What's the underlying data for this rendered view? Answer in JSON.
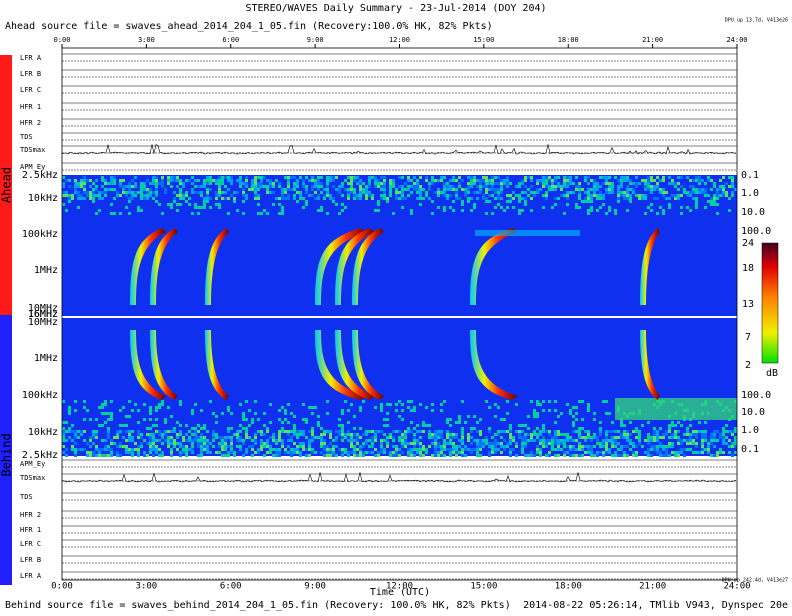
{
  "header": {
    "title": "STEREO/WAVES Daily Summary - 23-Jul-2014 (DOY 204)",
    "ahead_source": "Ahead source file = swaves_ahead_2014_204_1_05.fin (Recovery:100.0% HK, 82% Pkts)",
    "ahead_status": "DPU up 13.7d, V413e26"
  },
  "time_axis": {
    "ticks": [
      "0:00",
      "3:00",
      "6:00",
      "9:00",
      "12:00",
      "15:00",
      "18:00",
      "21:00",
      "24:00"
    ],
    "label": "Time (UTC)"
  },
  "side": {
    "ahead": "Ahead",
    "behind": "Behind"
  },
  "ahead_panels": [
    "LFR A",
    "LFR B",
    "LFR C",
    "HFR 1",
    "HFR 2",
    "TDS",
    "TDSmax",
    "APM_Ey"
  ],
  "behind_panels": [
    "APM_Ey",
    "TDSmax",
    "TDS",
    "HFR 2",
    "HFR 1",
    "LFR C",
    "LFR B",
    "LFR A"
  ],
  "ahead_freqs": [
    "2.5kHz",
    "10kHz",
    "100kHz",
    "1MHz",
    "10MHz",
    "16MHz"
  ],
  "behind_freqs": [
    "16MHz",
    "10MHz",
    "1MHz",
    "100kHz",
    "10kHz",
    "2.5kHz"
  ],
  "ahead_right": [
    "0.1",
    "1.0",
    "10.0",
    "100.0"
  ],
  "behind_right": [
    "100.0",
    "10.0",
    "1.0",
    "0.1"
  ],
  "colorbar": {
    "labels": [
      "24",
      "18",
      "13",
      "7",
      "2"
    ],
    "unit": "dB"
  },
  "footer": {
    "behind_source": "Behind source file = swaves_behind_2014_204_1_05.fin (Recovery: 100.0% HK, 82% Pkts)",
    "info": "2014-08-22 05:26:14, TMlib V943, Dynspec 20e",
    "behind_status": "DPU up 242.4d, V413e27"
  }
}
